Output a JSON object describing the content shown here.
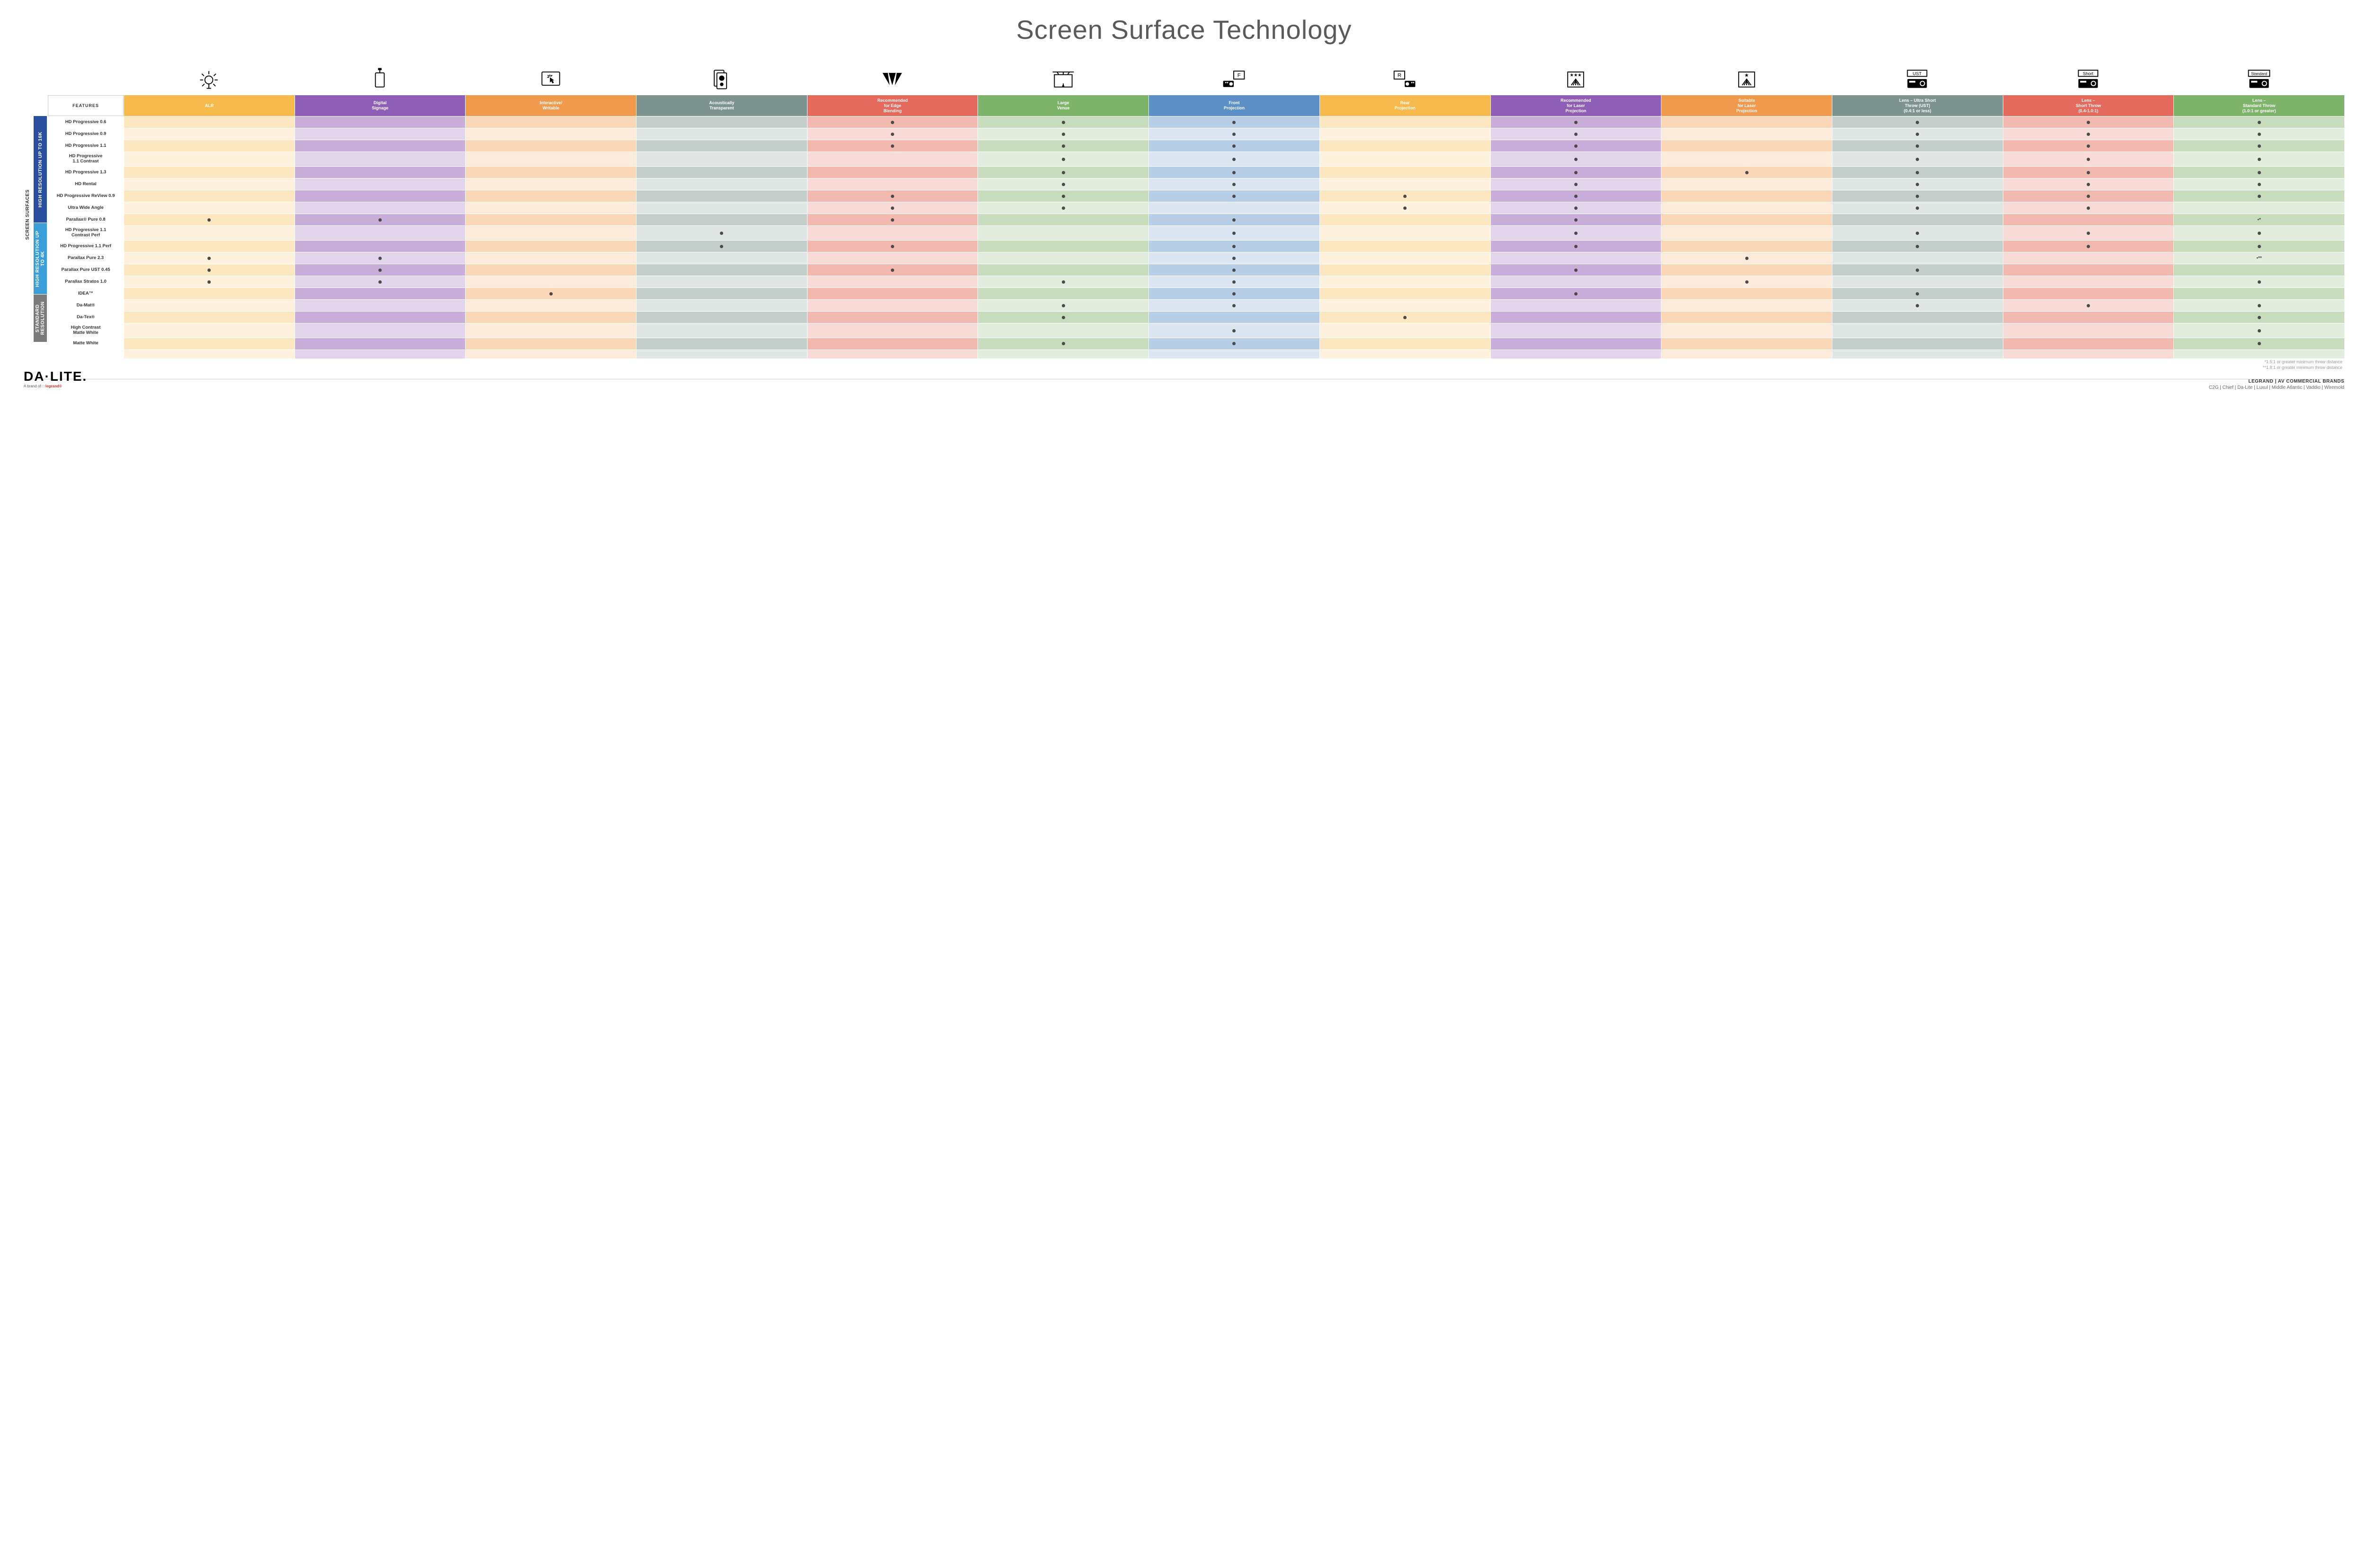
{
  "title": "Screen Surface Technology",
  "columns": [
    {
      "key": "alr",
      "label": "ALR",
      "color": "#f5b94c",
      "light": "#fde7c0",
      "lighter": "#fef2de"
    },
    {
      "key": "signage",
      "label": "Digital\nSignage",
      "color": "#8e5eb7",
      "light": "#c8aed8",
      "lighter": "#e2d5eb"
    },
    {
      "key": "interact",
      "label": "Interactive/\nWritable",
      "color": "#f19a4d",
      "light": "#f9d6b6",
      "lighter": "#fceadb"
    },
    {
      "key": "acoustic",
      "label": "Acoustically\nTransparent",
      "color": "#7d9390",
      "light": "#c4cfcc",
      "lighter": "#e0e6e4"
    },
    {
      "key": "edge",
      "label": "Recommended\nfor Edge\nBlending",
      "color": "#e36a5c",
      "light": "#f2b9b1",
      "lighter": "#f8dbd7"
    },
    {
      "key": "large",
      "label": "Large\nVenue",
      "color": "#7eb36a",
      "light": "#c6dcbc",
      "lighter": "#e2edde"
    },
    {
      "key": "front",
      "label": "Front\nProjection",
      "color": "#5b8fc6",
      "light": "#b7cee6",
      "lighter": "#dbe6f2"
    },
    {
      "key": "rear",
      "label": "Rear\nProjection",
      "color": "#f5b94c",
      "light": "#fde7c0",
      "lighter": "#fef2de"
    },
    {
      "key": "reclaser",
      "label": "Recommended\nfor Laser\nProjection",
      "color": "#8e5eb7",
      "light": "#c8aed8",
      "lighter": "#e2d5eb"
    },
    {
      "key": "suitlaser",
      "label": "Suitable\nfor Laser\nProjection",
      "color": "#f19a4d",
      "light": "#f9d6b6",
      "lighter": "#fceadb"
    },
    {
      "key": "ust",
      "label": "Lens – Ultra Short\nThrow (UST)\n(0.4:1 or less)",
      "color": "#7d9390",
      "light": "#c4cfcc",
      "lighter": "#e0e6e4"
    },
    {
      "key": "short",
      "label": "Lens –\nShort Throw\n(0.4-1.0:1)",
      "color": "#e36a5c",
      "light": "#f2b9b1",
      "lighter": "#f8dbd7"
    },
    {
      "key": "std",
      "label": "Lens –\nStandard Throw\n(1.0:1 or greater)",
      "color": "#7eb36a",
      "light": "#c6dcbc",
      "lighter": "#e2edde"
    }
  ],
  "icon_labels": [
    "alr",
    "signage",
    "interact",
    "acoustic",
    "edge",
    "large",
    "front",
    "rear",
    "reclaser",
    "suitlaser",
    "ust",
    "short",
    "std"
  ],
  "side_label": "SCREEN SURFACES",
  "categories": [
    {
      "label": "HIGH RESOLUTION UP TO 16K",
      "color": "#2a4f9e",
      "rows": 9
    },
    {
      "label": "HIGH RESOLUTION UP TO 4K",
      "color": "#3a9fd8",
      "rows": 6
    },
    {
      "label": "STANDARD\nRESOLUTION",
      "color": "#7a7a7a",
      "rows": 4
    }
  ],
  "rows": [
    {
      "label": "HD Progressive 0.6",
      "dots": {
        "edge": "•",
        "large": "•",
        "front": "•",
        "reclaser": "•",
        "ust": "•",
        "short": "•",
        "std": "•"
      }
    },
    {
      "label": "HD Progressive 0.9",
      "dots": {
        "edge": "•",
        "large": "•",
        "front": "•",
        "reclaser": "•",
        "ust": "•",
        "short": "•",
        "std": "•"
      }
    },
    {
      "label": "HD Progressive 1.1",
      "dots": {
        "edge": "•",
        "large": "•",
        "front": "•",
        "reclaser": "•",
        "ust": "•",
        "short": "•",
        "std": "•"
      }
    },
    {
      "label": "HD Progressive\n1.1 Contrast",
      "dots": {
        "large": "•",
        "front": "•",
        "reclaser": "•",
        "ust": "•",
        "short": "•",
        "std": "•"
      }
    },
    {
      "label": "HD Progressive 1.3",
      "dots": {
        "large": "•",
        "front": "•",
        "reclaser": "•",
        "suitlaser": "•",
        "ust": "•",
        "short": "•",
        "std": "•"
      }
    },
    {
      "label": "HD Rental",
      "dots": {
        "large": "•",
        "front": "•",
        "reclaser": "•",
        "ust": "•",
        "short": "•",
        "std": "•"
      }
    },
    {
      "label": "HD Progressive ReView 0.9",
      "dots": {
        "edge": "•",
        "large": "•",
        "front": "•",
        "rear": "•",
        "reclaser": "•",
        "ust": "•",
        "short": "•",
        "std": "•"
      }
    },
    {
      "label": "Ultra Wide Angle",
      "dots": {
        "edge": "•",
        "large": "•",
        "rear": "•",
        "reclaser": "•",
        "ust": "•",
        "short": "•"
      }
    },
    {
      "label": "Parallax® Pure 0.8",
      "dots": {
        "alr": "•",
        "signage": "•",
        "edge": "•",
        "front": "•",
        "reclaser": "•",
        "std": "•*"
      }
    },
    {
      "label": "HD Progressive 1.1\nContrast Perf",
      "dots": {
        "acoustic": "•",
        "front": "•",
        "reclaser": "•",
        "ust": "•",
        "short": "•",
        "std": "•"
      }
    },
    {
      "label": "HD Progressive 1.1 Perf",
      "dots": {
        "acoustic": "•",
        "edge": "•",
        "front": "•",
        "reclaser": "•",
        "ust": "•",
        "short": "•",
        "std": "•"
      }
    },
    {
      "label": "Parallax Pure 2.3",
      "dots": {
        "alr": "•",
        "signage": "•",
        "front": "•",
        "suitlaser": "•",
        "std": "•**"
      }
    },
    {
      "label": "Parallax Pure UST 0.45",
      "dots": {
        "alr": "•",
        "signage": "•",
        "edge": "•",
        "front": "•",
        "reclaser": "•",
        "ust": "•"
      }
    },
    {
      "label": "Parallax Stratos 1.0",
      "dots": {
        "alr": "•",
        "signage": "•",
        "large": "•",
        "front": "•",
        "suitlaser": "•",
        "std": "•"
      }
    },
    {
      "label": "IDEA™",
      "dots": {
        "interact": "•",
        "front": "•",
        "reclaser": "•",
        "ust": "•"
      }
    },
    {
      "label": "Da-Mat®",
      "dots": {
        "large": "•",
        "front": "•",
        "ust": "•",
        "short": "•",
        "std": "•"
      }
    },
    {
      "label": "Da-Tex®",
      "dots": {
        "large": "•",
        "rear": "•",
        "std": "•"
      }
    },
    {
      "label": "High Contrast\nMatte White",
      "dots": {
        "front": "•",
        "std": "•"
      }
    },
    {
      "label": "Matte White",
      "dots": {
        "large": "•",
        "front": "•",
        "std": "•"
      }
    }
  ],
  "features_label": "FEATURES",
  "footnotes": [
    "*1.5:1 or greater minimum throw distance",
    "**1.8:1 or greater minimum throw distance"
  ],
  "logo": {
    "text": "DA·LITE.",
    "sub_prefix": "A brand of ",
    "sub_brand": "□ legrand®"
  },
  "brands": {
    "title": "LEGRAND | AV COMMERCIAL BRANDS",
    "list": "C2G  |  Chief  |  Da-Lite  |  Luxul  |  Middle Atlantic  |  Vaddio  |  Wiremold"
  },
  "lens_labels": {
    "ust": "UST",
    "short": "Short",
    "std": "Standard"
  }
}
